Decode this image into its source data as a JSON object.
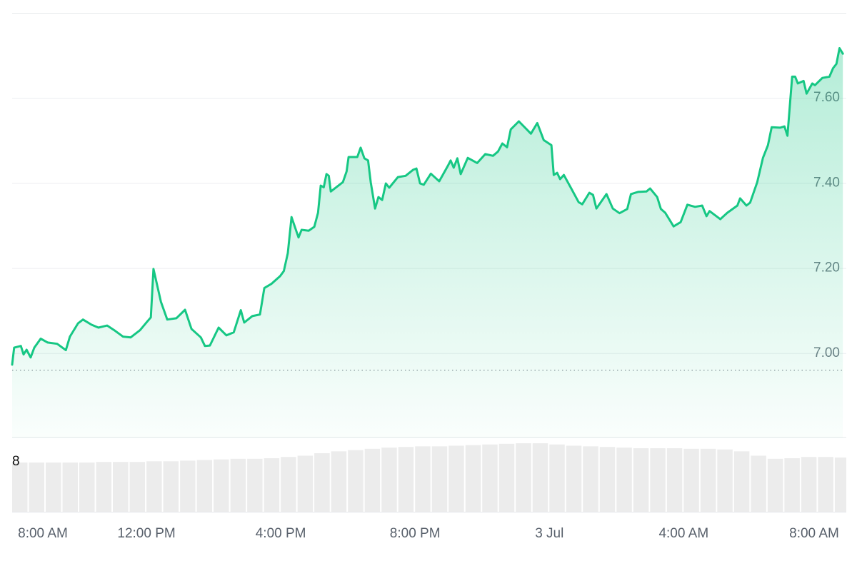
{
  "chart_data": {
    "type": "line",
    "color": "#16c784",
    "grid": true,
    "xlim": [
      8,
      32.8
    ],
    "xticks": [
      {
        "value": 8,
        "label": "8:00 AM"
      },
      {
        "value": 12,
        "label": "12:00 PM"
      },
      {
        "value": 16,
        "label": "4:00 PM"
      },
      {
        "value": 20,
        "label": "8:00 PM"
      },
      {
        "value": 24,
        "label": "3 Jul"
      },
      {
        "value": 28,
        "label": "4:00 AM"
      },
      {
        "value": 32,
        "label": "8:00 AM"
      }
    ],
    "ylim": [
      6.8,
      7.8
    ],
    "yticks": [
      {
        "value": 7,
        "label": "7.00"
      },
      {
        "value": 7.2,
        "label": "7.20"
      },
      {
        "value": 7.4,
        "label": "7.40"
      },
      {
        "value": 7.6,
        "label": "7.60"
      }
    ],
    "reference_line": 6.96,
    "x": [
      8.0,
      8.06,
      8.26,
      8.34,
      8.43,
      8.55,
      8.66,
      8.85,
      9.06,
      9.34,
      9.6,
      9.72,
      9.96,
      10.11,
      10.36,
      10.57,
      10.83,
      11.04,
      11.3,
      11.53,
      11.81,
      12.02,
      12.13,
      12.21,
      12.43,
      12.62,
      12.89,
      13.15,
      13.34,
      13.62,
      13.74,
      13.89,
      14.15,
      14.38,
      14.6,
      14.81,
      14.91,
      15.15,
      15.38,
      15.51,
      15.72,
      15.98,
      16.09,
      16.21,
      16.32,
      16.53,
      16.62,
      16.83,
      17.0,
      17.11,
      17.19,
      17.28,
      17.36,
      17.43,
      17.49,
      17.85,
      17.96,
      18.02,
      18.28,
      18.38,
      18.49,
      18.6,
      18.68,
      18.81,
      18.91,
      19.02,
      19.13,
      19.23,
      19.49,
      19.72,
      19.94,
      20.04,
      20.15,
      20.26,
      20.47,
      20.72,
      20.98,
      21.06,
      21.15,
      21.26,
      21.36,
      21.57,
      21.85,
      22.09,
      22.32,
      22.47,
      22.6,
      22.74,
      22.85,
      23.09,
      23.34,
      23.45,
      23.64,
      23.83,
      24.06,
      24.13,
      24.23,
      24.32,
      24.43,
      24.64,
      24.87,
      24.98,
      25.19,
      25.3,
      25.4,
      25.7,
      25.89,
      26.09,
      26.32,
      26.43,
      26.64,
      26.89,
      27.0,
      27.21,
      27.32,
      27.45,
      27.7,
      27.91,
      28.11,
      28.34,
      28.55,
      28.68,
      28.77,
      29.09,
      29.3,
      29.6,
      29.68,
      29.87,
      29.98,
      30.19,
      30.36,
      30.51,
      30.62,
      30.87,
      31.0,
      31.09,
      31.23,
      31.32,
      31.4,
      31.57,
      31.66,
      31.83,
      31.91,
      32.13,
      32.34,
      32.45,
      32.55,
      32.64,
      32.74
    ],
    "values": [
      6.973,
      7.013,
      7.017,
      6.997,
      7.008,
      6.99,
      7.013,
      7.034,
      7.025,
      7.022,
      7.007,
      7.039,
      7.07,
      7.079,
      7.067,
      7.06,
      7.065,
      7.054,
      7.039,
      7.037,
      7.054,
      7.074,
      7.084,
      7.198,
      7.121,
      7.079,
      7.082,
      7.102,
      7.057,
      7.037,
      7.017,
      7.018,
      7.06,
      7.042,
      7.049,
      7.101,
      7.072,
      7.087,
      7.091,
      7.153,
      7.163,
      7.181,
      7.193,
      7.235,
      7.32,
      7.272,
      7.29,
      7.288,
      7.297,
      7.33,
      7.394,
      7.39,
      7.421,
      7.417,
      7.38,
      7.402,
      7.427,
      7.461,
      7.461,
      7.483,
      7.458,
      7.453,
      7.402,
      7.34,
      7.367,
      7.36,
      7.399,
      7.389,
      7.414,
      7.417,
      7.431,
      7.434,
      7.399,
      7.396,
      7.422,
      7.404,
      7.441,
      7.453,
      7.436,
      7.458,
      7.421,
      7.459,
      7.447,
      7.468,
      7.464,
      7.474,
      7.493,
      7.484,
      7.526,
      7.545,
      7.525,
      7.516,
      7.541,
      7.501,
      7.489,
      7.419,
      7.424,
      7.409,
      7.419,
      7.389,
      7.355,
      7.35,
      7.377,
      7.372,
      7.34,
      7.374,
      7.34,
      7.329,
      7.339,
      7.374,
      7.379,
      7.38,
      7.387,
      7.367,
      7.339,
      7.33,
      7.298,
      7.308,
      7.349,
      7.344,
      7.347,
      7.322,
      7.334,
      7.315,
      7.33,
      7.347,
      7.364,
      7.347,
      7.354,
      7.402,
      7.459,
      7.489,
      7.531,
      7.53,
      7.533,
      7.511,
      7.65,
      7.65,
      7.634,
      7.64,
      7.61,
      7.634,
      7.63,
      7.647,
      7.65,
      7.67,
      7.68,
      7.717,
      7.704
    ],
    "volume": {
      "color": "#ececec",
      "ylim": [
        0,
        11.8
      ],
      "yticks": [
        8
      ],
      "x": [
        8,
        8.5,
        9,
        9.5,
        10,
        10.5,
        11,
        11.5,
        12,
        12.5,
        13,
        13.5,
        14,
        14.5,
        15,
        15.5,
        16,
        16.5,
        17,
        17.5,
        18,
        18.5,
        19,
        19.5,
        20,
        20.5,
        21,
        21.5,
        22,
        22.5,
        23,
        23.5,
        24,
        24.5,
        25,
        25.5,
        26,
        26.5,
        27,
        27.5,
        28,
        28.5,
        29,
        29.5,
        30,
        30.5,
        31,
        31.5,
        32,
        32.5
      ],
      "values": [
        7.9,
        7.9,
        7.9,
        7.9,
        7.9,
        8.0,
        8.0,
        8.0,
        8.1,
        8.1,
        8.2,
        8.3,
        8.4,
        8.5,
        8.5,
        8.6,
        8.8,
        9.0,
        9.4,
        9.7,
        9.9,
        10.1,
        10.3,
        10.4,
        10.5,
        10.5,
        10.6,
        10.7,
        10.8,
        10.9,
        11.0,
        11.0,
        10.8,
        10.6,
        10.5,
        10.4,
        10.3,
        10.2,
        10.2,
        10.2,
        10.1,
        10.1,
        10.0,
        9.7,
        9.0,
        8.5,
        8.6,
        8.8,
        8.8,
        8.7
      ]
    }
  }
}
